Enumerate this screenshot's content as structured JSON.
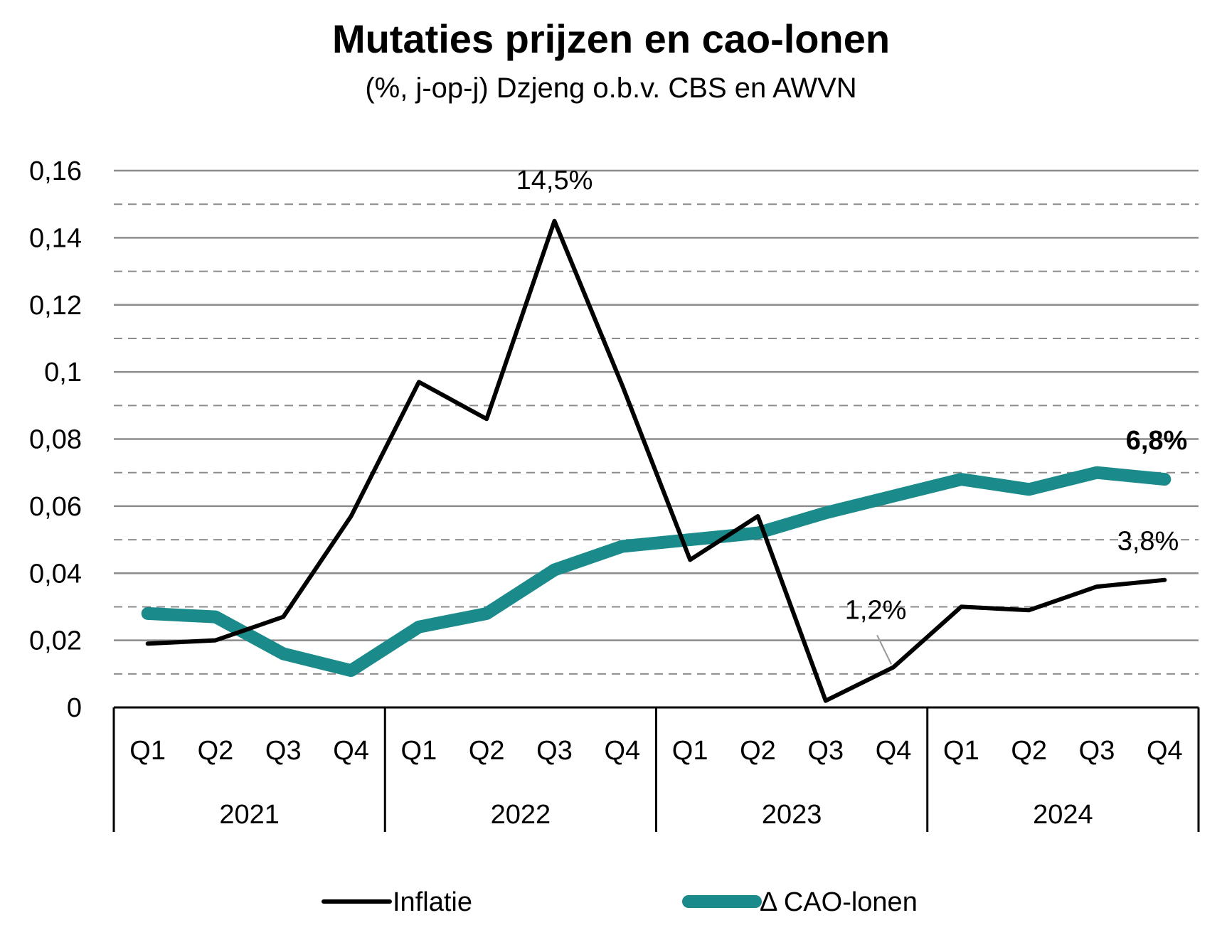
{
  "title": "Mutaties prijzen en cao-lonen",
  "subtitle": "(%, j-op-j) Dzjeng o.b.v. CBS en AWVN",
  "chart_data": {
    "type": "line",
    "title": "Mutaties prijzen en cao-lonen",
    "subtitle": "(%, j-op-j) Dzjeng o.b.v. CBS en AWVN",
    "ylim": [
      0,
      0.16
    ],
    "yticks": [
      "0",
      "0,02",
      "0,04",
      "0,06",
      "0,08",
      "0,1",
      "0,12",
      "0,14",
      "0,16"
    ],
    "years": [
      "2021",
      "2022",
      "2023",
      "2024"
    ],
    "quarters": [
      "Q1",
      "Q2",
      "Q3",
      "Q4"
    ],
    "categories": [
      "Q1",
      "Q2",
      "Q3",
      "Q4",
      "Q1",
      "Q2",
      "Q3",
      "Q4",
      "Q1",
      "Q2",
      "Q3",
      "Q4",
      "Q1",
      "Q2",
      "Q3",
      "Q4"
    ],
    "grid": "major solid, minor dashed",
    "legend_position": "bottom",
    "series": [
      {
        "name": "Inflatie",
        "color": "#000000",
        "values": [
          0.019,
          0.02,
          0.027,
          0.057,
          0.097,
          0.086,
          0.145,
          0.096,
          0.044,
          0.057,
          0.002,
          0.012,
          0.03,
          0.029,
          0.036,
          0.038
        ]
      },
      {
        "name": "Δ CAO-lonen",
        "color": "#1a8a8a",
        "values": [
          0.028,
          0.027,
          0.016,
          0.011,
          0.024,
          0.028,
          0.041,
          0.048,
          0.05,
          0.052,
          0.058,
          0.063,
          0.068,
          0.065,
          0.07,
          0.068
        ]
      }
    ],
    "annotations": [
      {
        "text": "14,5%",
        "series": 0,
        "index": 6
      },
      {
        "text": "1,2%",
        "series": 0,
        "index": 11
      },
      {
        "text": "3,8%",
        "series": 0,
        "index": 15
      },
      {
        "text": "6,8%",
        "series": 1,
        "index": 15
      }
    ]
  }
}
